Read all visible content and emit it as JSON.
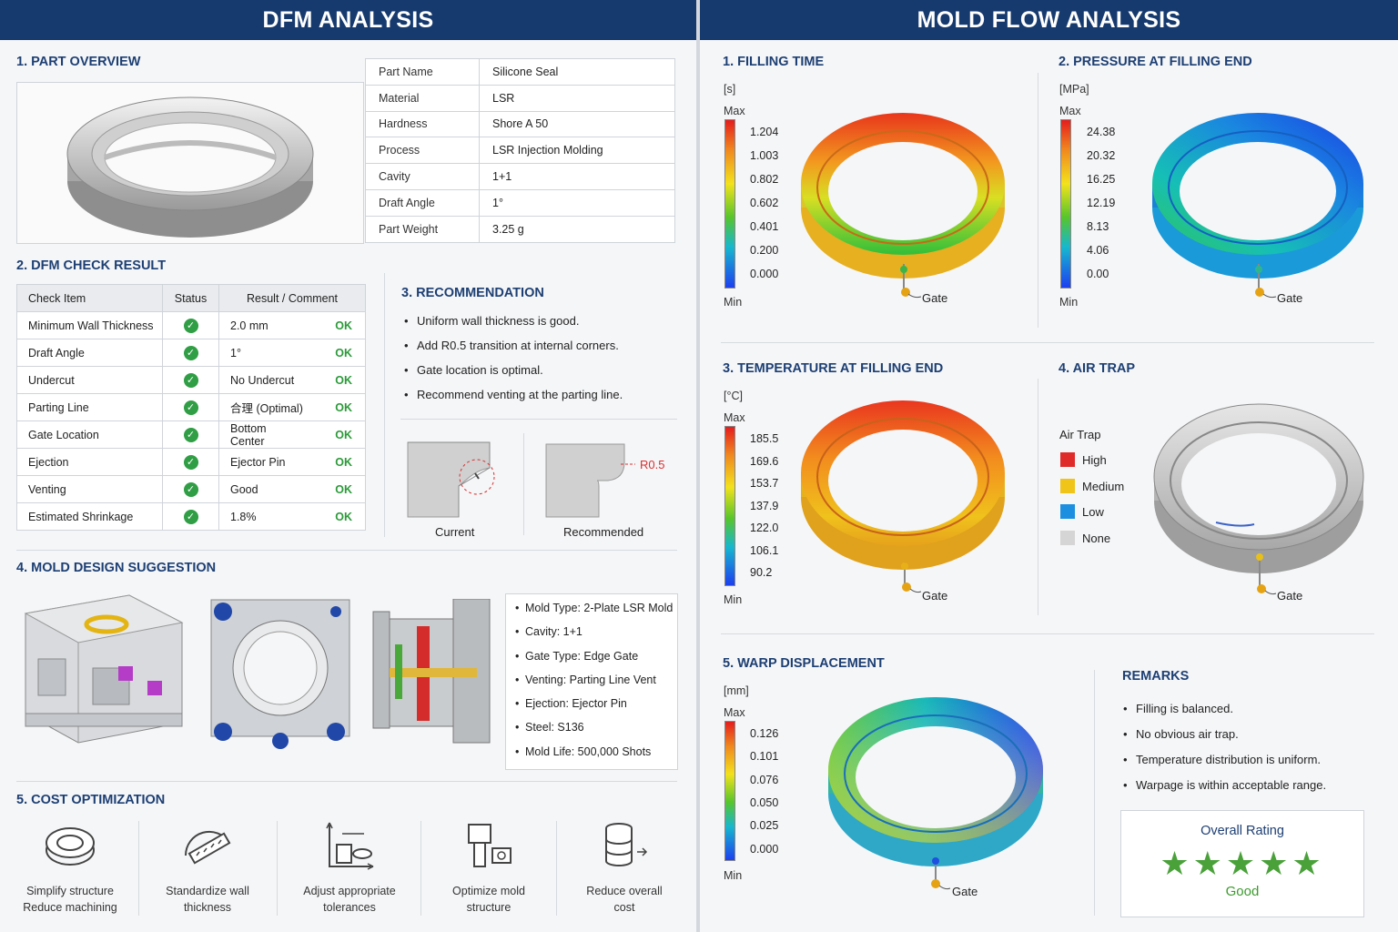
{
  "dfm": {
    "header": "DFM ANALYSIS",
    "part_overview": {
      "title": "1. PART OVERVIEW",
      "specs": [
        {
          "key": "Part Name",
          "value": "Silicone Seal"
        },
        {
          "key": "Material",
          "value": "LSR"
        },
        {
          "key": "Hardness",
          "value": "Shore A 50"
        },
        {
          "key": "Process",
          "value": "LSR Injection Molding"
        },
        {
          "key": "Cavity",
          "value": "1+1"
        },
        {
          "key": "Draft Angle",
          "value": "1°"
        },
        {
          "key": "Part Weight",
          "value": "3.25 g"
        }
      ]
    },
    "check": {
      "title": "2. DFM CHECK RESULT",
      "headers": [
        "Check Item",
        "Status",
        "Result / Comment"
      ],
      "rows": [
        {
          "item": "Minimum Wall Thickness",
          "result": "2.0 mm",
          "ok": "OK"
        },
        {
          "item": "Draft Angle",
          "result": "1°",
          "ok": "OK"
        },
        {
          "item": "Undercut",
          "result": "No Undercut",
          "ok": "OK"
        },
        {
          "item": "Parting Line",
          "result": "合理 (Optimal)",
          "ok": "OK"
        },
        {
          "item": "Gate Location",
          "result": "Bottom Center",
          "ok": "OK"
        },
        {
          "item": "Ejection",
          "result": "Ejector Pin",
          "ok": "OK"
        },
        {
          "item": "Venting",
          "result": "Good",
          "ok": "OK"
        },
        {
          "item": "Estimated Shrinkage",
          "result": "1.8%",
          "ok": "OK"
        }
      ]
    },
    "recommendation": {
      "title": "3. RECOMMENDATION",
      "items": [
        "Uniform wall thickness is good.",
        "Add R0.5 transition at internal corners.",
        "Gate location is optimal.",
        "Recommend venting at the parting line."
      ],
      "current_label": "Current",
      "recommended_label": "Recommended",
      "radius_label": "R0.5"
    },
    "mold": {
      "title": "4. MOLD DESIGN SUGGESTION",
      "specs": [
        "Mold Type: 2-Plate LSR Mold",
        "Cavity: 1+1",
        "Gate Type: Edge Gate",
        "Venting: Parting Line Vent",
        "Ejection: Ejector Pin",
        "Steel: S136",
        "Mold Life: 500,000 Shots"
      ]
    },
    "cost": {
      "title": "5. COST OPTIMIZATION",
      "items": [
        {
          "line1": "Simplify structure",
          "line2": "Reduce machining",
          "icon": "ring-icon"
        },
        {
          "line1": "Standardize wall",
          "line2": "thickness",
          "icon": "ruler-icon"
        },
        {
          "line1": "Adjust appropriate",
          "line2": "tolerances",
          "icon": "tolerance-icon"
        },
        {
          "line1": "Optimize mold",
          "line2": "structure",
          "icon": "mold-structure-icon"
        },
        {
          "line1": "Reduce overall",
          "line2": "cost",
          "icon": "coins-icon"
        }
      ]
    }
  },
  "flow": {
    "header": "MOLD FLOW ANALYSIS",
    "filling_time": {
      "title": "1. FILLING TIME",
      "unit": "[s]",
      "max_label": "Max",
      "min_label": "Min",
      "ticks": [
        "1.204",
        "1.003",
        "0.802",
        "0.602",
        "0.401",
        "0.200",
        "0.000"
      ],
      "gate": "Gate"
    },
    "pressure": {
      "title": "2. PRESSURE AT FILLING END",
      "unit": "[MPa]",
      "max_label": "Max",
      "min_label": "Min",
      "ticks": [
        "24.38",
        "20.32",
        "16.25",
        "12.19",
        "8.13",
        "4.06",
        "0.00"
      ],
      "gate": "Gate"
    },
    "temperature": {
      "title": "3. TEMPERATURE AT FILLING END",
      "unit": "[°C]",
      "max_label": "Max",
      "min_label": "Min",
      "ticks": [
        "185.5",
        "169.6",
        "153.7",
        "137.9",
        "122.0",
        "106.1",
        "90.2"
      ],
      "gate": "Gate"
    },
    "air_trap": {
      "title": "4. AIR TRAP",
      "legend_title": "Air Trap",
      "legend": [
        {
          "label": "High",
          "color": "#e02b2b"
        },
        {
          "label": "Medium",
          "color": "#f0c419"
        },
        {
          "label": "Low",
          "color": "#1d8fe0"
        },
        {
          "label": "None",
          "color": "#d5d5d5"
        }
      ],
      "gate": "Gate"
    },
    "warp": {
      "title": "5. WARP DISPLACEMENT",
      "unit": "[mm]",
      "max_label": "Max",
      "min_label": "Min",
      "ticks": [
        "0.126",
        "0.101",
        "0.076",
        "0.050",
        "0.025",
        "0.000"
      ],
      "gate": "Gate"
    },
    "remarks": {
      "title": "REMARKS",
      "items": [
        "Filling is balanced.",
        "No obvious air trap.",
        "Temperature distribution is uniform.",
        "Warpage is within acceptable range."
      ]
    },
    "rating": {
      "title": "Overall Rating",
      "stars": 5,
      "stars_text": "★★★★★",
      "value": "Good"
    }
  }
}
